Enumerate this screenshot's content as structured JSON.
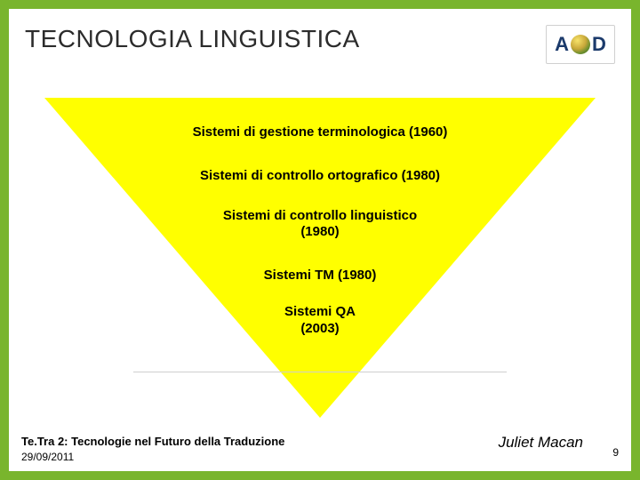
{
  "title": "TECNOLOGIA LINGUISTICA",
  "logo": {
    "left": "A",
    "right": "D"
  },
  "triangle": {
    "fill_color": "#ffff00",
    "items": [
      {
        "text": "Sistemi di gestione terminologica (1960)"
      },
      {
        "text": "Sistemi di controllo ortografico (1980)"
      },
      {
        "text": "Sistemi di controllo linguistico\n(1980)"
      },
      {
        "text": "Sistemi TM (1980)"
      },
      {
        "text": "Sistemi QA\n(2003)"
      }
    ],
    "text_color": "#000000",
    "font_weight": "700",
    "font_size_pt": 11
  },
  "footer": {
    "event": "Te.Tra 2: Tecnologie nel Futuro della Traduzione",
    "date": "29/09/2011",
    "author": "Juliet Macan",
    "page": "9"
  },
  "colors": {
    "slide_background": "#ffffff",
    "outer_background": "#79b52d",
    "title_color": "#2c2c2c"
  }
}
